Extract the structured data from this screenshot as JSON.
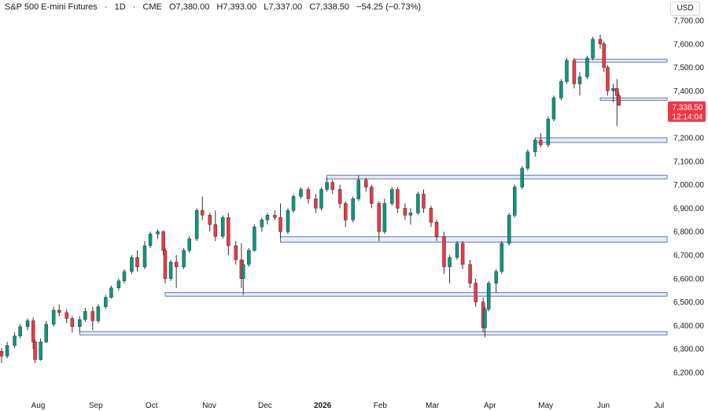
{
  "header": {
    "symbol": "S&P 500 E-mini Futures",
    "interval": "1D",
    "exchange": "CME",
    "open": "O7,380.00",
    "high": "H7,393.00",
    "low": "L7,337.00",
    "close": "C7,338.50",
    "change": "−54.25 (−0.73%)",
    "sep": "·"
  },
  "currency": "USD",
  "colors": {
    "up": "#089981",
    "down": "#f23645",
    "zone_fill": "#e8edf9",
    "zone_edge": "#3d5a99",
    "label_bg": "#f23645"
  },
  "last_price": {
    "value": "7,338.50",
    "countdown": "12:14:04",
    "price": 7338.5
  },
  "chart_data": {
    "type": "candlestick",
    "y_ticks": [
      "7,700.00",
      "7,600.00",
      "7,500.00",
      "7,400.00",
      "7,300.00",
      "7,200.00",
      "7,100.00",
      "7,000.00",
      "6,900.00",
      "6,800.00",
      "6,700.00",
      "6,600.00",
      "6,500.00",
      "6,400.00",
      "6,300.00",
      "6,200.00"
    ],
    "x_ticks": [
      {
        "label": "Aug",
        "date": "2025-08-01",
        "bold": false
      },
      {
        "label": "Sep",
        "date": "2025-09-01",
        "bold": false
      },
      {
        "label": "Oct",
        "date": "2025-10-01",
        "bold": false
      },
      {
        "label": "Nov",
        "date": "2025-11-01",
        "bold": false
      },
      {
        "label": "Dec",
        "date": "2025-12-01",
        "bold": false
      },
      {
        "label": "2026",
        "date": "2026-01-01",
        "bold": true
      },
      {
        "label": "Feb",
        "date": "2026-02-01",
        "bold": false
      },
      {
        "label": "Mar",
        "date": "2026-03-01",
        "bold": false
      },
      {
        "label": "Apr",
        "date": "2026-04-01",
        "bold": false
      },
      {
        "label": "May",
        "date": "2026-05-01",
        "bold": false
      },
      {
        "label": "Jun",
        "date": "2026-06-01",
        "bold": false
      },
      {
        "label": "Jul",
        "date": "2026-07-01",
        "bold": false
      }
    ],
    "y_range": [
      6180,
      7730
    ],
    "x_range": [
      "2025-07-10",
      "2026-07-20"
    ],
    "zones": [
      {
        "from": "2026-05-18",
        "to": "2026-07-20",
        "top": 7535,
        "bottom": 7522
      },
      {
        "from": "2026-06-01",
        "to": "2026-07-20",
        "top": 7370,
        "bottom": 7362
      },
      {
        "from": "2026-04-27",
        "to": "2026-07-20",
        "top": 7200,
        "bottom": 7180
      },
      {
        "from": "2026-01-05",
        "to": "2026-07-20",
        "top": 7040,
        "bottom": 7025
      },
      {
        "from": "2025-12-11",
        "to": "2026-07-20",
        "top": 6778,
        "bottom": 6755
      },
      {
        "from": "2025-10-10",
        "to": "2026-07-20",
        "top": 6540,
        "bottom": 6525
      },
      {
        "from": "2025-08-25",
        "to": "2026-07-20",
        "top": 6374,
        "bottom": 6360
      }
    ],
    "candles": [
      {
        "d": "2025-07-14",
        "o": 6290,
        "h": 6305,
        "l": 6240,
        "c": 6270
      },
      {
        "d": "2025-07-17",
        "o": 6270,
        "h": 6330,
        "l": 6260,
        "c": 6315
      },
      {
        "d": "2025-07-21",
        "o": 6315,
        "h": 6370,
        "l": 6305,
        "c": 6355
      },
      {
        "d": "2025-07-24",
        "o": 6355,
        "h": 6405,
        "l": 6345,
        "c": 6395
      },
      {
        "d": "2025-07-28",
        "o": 6395,
        "h": 6430,
        "l": 6380,
        "c": 6420
      },
      {
        "d": "2025-07-31",
        "o": 6420,
        "h": 6435,
        "l": 6300,
        "c": 6330
      },
      {
        "d": "2025-08-01",
        "o": 6330,
        "h": 6340,
        "l": 6240,
        "c": 6255
      },
      {
        "d": "2025-08-04",
        "o": 6255,
        "h": 6345,
        "l": 6250,
        "c": 6330
      },
      {
        "d": "2025-08-07",
        "o": 6330,
        "h": 6420,
        "l": 6325,
        "c": 6405
      },
      {
        "d": "2025-08-11",
        "o": 6405,
        "h": 6480,
        "l": 6395,
        "c": 6465
      },
      {
        "d": "2025-08-14",
        "o": 6465,
        "h": 6490,
        "l": 6440,
        "c": 6455
      },
      {
        "d": "2025-08-18",
        "o": 6455,
        "h": 6470,
        "l": 6410,
        "c": 6430
      },
      {
        "d": "2025-08-21",
        "o": 6430,
        "h": 6440,
        "l": 6370,
        "c": 6395
      },
      {
        "d": "2025-08-25",
        "o": 6395,
        "h": 6440,
        "l": 6370,
        "c": 6425
      },
      {
        "d": "2025-08-28",
        "o": 6425,
        "h": 6475,
        "l": 6415,
        "c": 6460
      },
      {
        "d": "2025-09-01",
        "o": 6460,
        "h": 6480,
        "l": 6380,
        "c": 6420
      },
      {
        "d": "2025-09-04",
        "o": 6420,
        "h": 6490,
        "l": 6410,
        "c": 6480
      },
      {
        "d": "2025-09-08",
        "o": 6480,
        "h": 6530,
        "l": 6470,
        "c": 6520
      },
      {
        "d": "2025-09-11",
        "o": 6520,
        "h": 6570,
        "l": 6515,
        "c": 6560
      },
      {
        "d": "2025-09-15",
        "o": 6560,
        "h": 6600,
        "l": 6550,
        "c": 6590
      },
      {
        "d": "2025-09-18",
        "o": 6590,
        "h": 6640,
        "l": 6580,
        "c": 6630
      },
      {
        "d": "2025-09-22",
        "o": 6630,
        "h": 6700,
        "l": 6620,
        "c": 6690
      },
      {
        "d": "2025-09-25",
        "o": 6690,
        "h": 6720,
        "l": 6630,
        "c": 6650
      },
      {
        "d": "2025-09-29",
        "o": 6650,
        "h": 6760,
        "l": 6640,
        "c": 6740
      },
      {
        "d": "2025-10-02",
        "o": 6740,
        "h": 6800,
        "l": 6730,
        "c": 6790
      },
      {
        "d": "2025-10-06",
        "o": 6790,
        "h": 6810,
        "l": 6770,
        "c": 6800
      },
      {
        "d": "2025-10-09",
        "o": 6800,
        "h": 6805,
        "l": 6700,
        "c": 6720
      },
      {
        "d": "2025-10-10",
        "o": 6720,
        "h": 6730,
        "l": 6580,
        "c": 6600
      },
      {
        "d": "2025-10-13",
        "o": 6600,
        "h": 6680,
        "l": 6590,
        "c": 6670
      },
      {
        "d": "2025-10-16",
        "o": 6670,
        "h": 6700,
        "l": 6560,
        "c": 6650
      },
      {
        "d": "2025-10-20",
        "o": 6650,
        "h": 6730,
        "l": 6640,
        "c": 6720
      },
      {
        "d": "2025-10-23",
        "o": 6720,
        "h": 6780,
        "l": 6710,
        "c": 6770
      },
      {
        "d": "2025-10-27",
        "o": 6770,
        "h": 6900,
        "l": 6760,
        "c": 6890
      },
      {
        "d": "2025-10-30",
        "o": 6890,
        "h": 6950,
        "l": 6850,
        "c": 6870
      },
      {
        "d": "2025-11-03",
        "o": 6870,
        "h": 6880,
        "l": 6800,
        "c": 6830
      },
      {
        "d": "2025-11-06",
        "o": 6830,
        "h": 6890,
        "l": 6760,
        "c": 6780
      },
      {
        "d": "2025-11-10",
        "o": 6780,
        "h": 6870,
        "l": 6770,
        "c": 6860
      },
      {
        "d": "2025-11-13",
        "o": 6860,
        "h": 6880,
        "l": 6700,
        "c": 6740
      },
      {
        "d": "2025-11-17",
        "o": 6740,
        "h": 6760,
        "l": 6660,
        "c": 6680
      },
      {
        "d": "2025-11-20",
        "o": 6680,
        "h": 6750,
        "l": 6560,
        "c": 6600
      },
      {
        "d": "2025-11-21",
        "o": 6600,
        "h": 6680,
        "l": 6530,
        "c": 6660
      },
      {
        "d": "2025-11-24",
        "o": 6660,
        "h": 6730,
        "l": 6650,
        "c": 6720
      },
      {
        "d": "2025-11-27",
        "o": 6720,
        "h": 6830,
        "l": 6715,
        "c": 6820
      },
      {
        "d": "2025-12-01",
        "o": 6820,
        "h": 6860,
        "l": 6800,
        "c": 6850
      },
      {
        "d": "2025-12-04",
        "o": 6850,
        "h": 6880,
        "l": 6830,
        "c": 6870
      },
      {
        "d": "2025-12-08",
        "o": 6870,
        "h": 6890,
        "l": 6850,
        "c": 6860
      },
      {
        "d": "2025-12-11",
        "o": 6860,
        "h": 6920,
        "l": 6770,
        "c": 6800
      },
      {
        "d": "2025-12-15",
        "o": 6800,
        "h": 6900,
        "l": 6790,
        "c": 6890
      },
      {
        "d": "2025-12-18",
        "o": 6890,
        "h": 6960,
        "l": 6880,
        "c": 6950
      },
      {
        "d": "2025-12-22",
        "o": 6950,
        "h": 6990,
        "l": 6940,
        "c": 6980
      },
      {
        "d": "2025-12-26",
        "o": 6980,
        "h": 6990,
        "l": 6920,
        "c": 6940
      },
      {
        "d": "2025-12-30",
        "o": 6940,
        "h": 6960,
        "l": 6880,
        "c": 6900
      },
      {
        "d": "2026-01-02",
        "o": 6900,
        "h": 6990,
        "l": 6890,
        "c": 6980
      },
      {
        "d": "2026-01-05",
        "o": 6980,
        "h": 7030,
        "l": 6970,
        "c": 7010
      },
      {
        "d": "2026-01-08",
        "o": 7010,
        "h": 7020,
        "l": 6960,
        "c": 6980
      },
      {
        "d": "2026-01-12",
        "o": 6980,
        "h": 7000,
        "l": 6900,
        "c": 6920
      },
      {
        "d": "2026-01-15",
        "o": 6920,
        "h": 6930,
        "l": 6820,
        "c": 6850
      },
      {
        "d": "2026-01-19",
        "o": 6850,
        "h": 6950,
        "l": 6840,
        "c": 6940
      },
      {
        "d": "2026-01-22",
        "o": 6940,
        "h": 7040,
        "l": 6930,
        "c": 7020
      },
      {
        "d": "2026-01-26",
        "o": 7020,
        "h": 7030,
        "l": 6970,
        "c": 6990
      },
      {
        "d": "2026-01-29",
        "o": 6990,
        "h": 7000,
        "l": 6900,
        "c": 6920
      },
      {
        "d": "2026-02-02",
        "o": 6920,
        "h": 6930,
        "l": 6760,
        "c": 6800
      },
      {
        "d": "2026-02-05",
        "o": 6800,
        "h": 6940,
        "l": 6790,
        "c": 6920
      },
      {
        "d": "2026-02-09",
        "o": 6920,
        "h": 6990,
        "l": 6910,
        "c": 6980
      },
      {
        "d": "2026-02-12",
        "o": 6980,
        "h": 6990,
        "l": 6880,
        "c": 6900
      },
      {
        "d": "2026-02-16",
        "o": 6900,
        "h": 6920,
        "l": 6850,
        "c": 6870
      },
      {
        "d": "2026-02-19",
        "o": 6870,
        "h": 6900,
        "l": 6830,
        "c": 6880
      },
      {
        "d": "2026-02-23",
        "o": 6880,
        "h": 6970,
        "l": 6870,
        "c": 6960
      },
      {
        "d": "2026-02-26",
        "o": 6960,
        "h": 6980,
        "l": 6880,
        "c": 6900
      },
      {
        "d": "2026-03-02",
        "o": 6900,
        "h": 6910,
        "l": 6820,
        "c": 6840
      },
      {
        "d": "2026-03-05",
        "o": 6840,
        "h": 6850,
        "l": 6760,
        "c": 6780
      },
      {
        "d": "2026-03-09",
        "o": 6780,
        "h": 6800,
        "l": 6620,
        "c": 6650
      },
      {
        "d": "2026-03-12",
        "o": 6650,
        "h": 6700,
        "l": 6580,
        "c": 6690
      },
      {
        "d": "2026-03-16",
        "o": 6690,
        "h": 6760,
        "l": 6680,
        "c": 6750
      },
      {
        "d": "2026-03-19",
        "o": 6750,
        "h": 6760,
        "l": 6640,
        "c": 6660
      },
      {
        "d": "2026-03-23",
        "o": 6660,
        "h": 6680,
        "l": 6560,
        "c": 6580
      },
      {
        "d": "2026-03-26",
        "o": 6580,
        "h": 6600,
        "l": 6480,
        "c": 6500
      },
      {
        "d": "2026-03-30",
        "o": 6500,
        "h": 6520,
        "l": 6370,
        "c": 6390
      },
      {
        "d": "2026-03-31",
        "o": 6390,
        "h": 6480,
        "l": 6350,
        "c": 6470
      },
      {
        "d": "2026-04-02",
        "o": 6470,
        "h": 6590,
        "l": 6460,
        "c": 6580
      },
      {
        "d": "2026-04-06",
        "o": 6580,
        "h": 6640,
        "l": 6540,
        "c": 6630
      },
      {
        "d": "2026-04-09",
        "o": 6630,
        "h": 6760,
        "l": 6620,
        "c": 6750
      },
      {
        "d": "2026-04-13",
        "o": 6750,
        "h": 6880,
        "l": 6740,
        "c": 6870
      },
      {
        "d": "2026-04-16",
        "o": 6870,
        "h": 7000,
        "l": 6860,
        "c": 6990
      },
      {
        "d": "2026-04-20",
        "o": 6990,
        "h": 7080,
        "l": 6980,
        "c": 7070
      },
      {
        "d": "2026-04-23",
        "o": 7070,
        "h": 7150,
        "l": 7060,
        "c": 7140
      },
      {
        "d": "2026-04-27",
        "o": 7140,
        "h": 7200,
        "l": 7120,
        "c": 7190
      },
      {
        "d": "2026-04-30",
        "o": 7190,
        "h": 7220,
        "l": 7160,
        "c": 7170
      },
      {
        "d": "2026-05-04",
        "o": 7170,
        "h": 7290,
        "l": 7160,
        "c": 7280
      },
      {
        "d": "2026-05-07",
        "o": 7280,
        "h": 7380,
        "l": 7270,
        "c": 7370
      },
      {
        "d": "2026-05-11",
        "o": 7370,
        "h": 7450,
        "l": 7360,
        "c": 7440
      },
      {
        "d": "2026-05-14",
        "o": 7440,
        "h": 7540,
        "l": 7430,
        "c": 7530
      },
      {
        "d": "2026-05-18",
        "o": 7530,
        "h": 7540,
        "l": 7410,
        "c": 7430
      },
      {
        "d": "2026-05-21",
        "o": 7430,
        "h": 7480,
        "l": 7380,
        "c": 7460
      },
      {
        "d": "2026-05-25",
        "o": 7460,
        "h": 7550,
        "l": 7450,
        "c": 7540
      },
      {
        "d": "2026-05-28",
        "o": 7540,
        "h": 7630,
        "l": 7530,
        "c": 7620
      },
      {
        "d": "2026-06-01",
        "o": 7620,
        "h": 7640,
        "l": 7580,
        "c": 7600
      },
      {
        "d": "2026-06-03",
        "o": 7600,
        "h": 7610,
        "l": 7480,
        "c": 7500
      },
      {
        "d": "2026-06-05",
        "o": 7500,
        "h": 7510,
        "l": 7380,
        "c": 7400
      },
      {
        "d": "2026-06-08",
        "o": 7400,
        "h": 7430,
        "l": 7350,
        "c": 7410
      },
      {
        "d": "2026-06-10",
        "o": 7410,
        "h": 7450,
        "l": 7250,
        "c": 7380
      },
      {
        "d": "2026-06-11",
        "o": 7380,
        "h": 7393,
        "l": 7337,
        "c": 7338.5
      }
    ]
  }
}
